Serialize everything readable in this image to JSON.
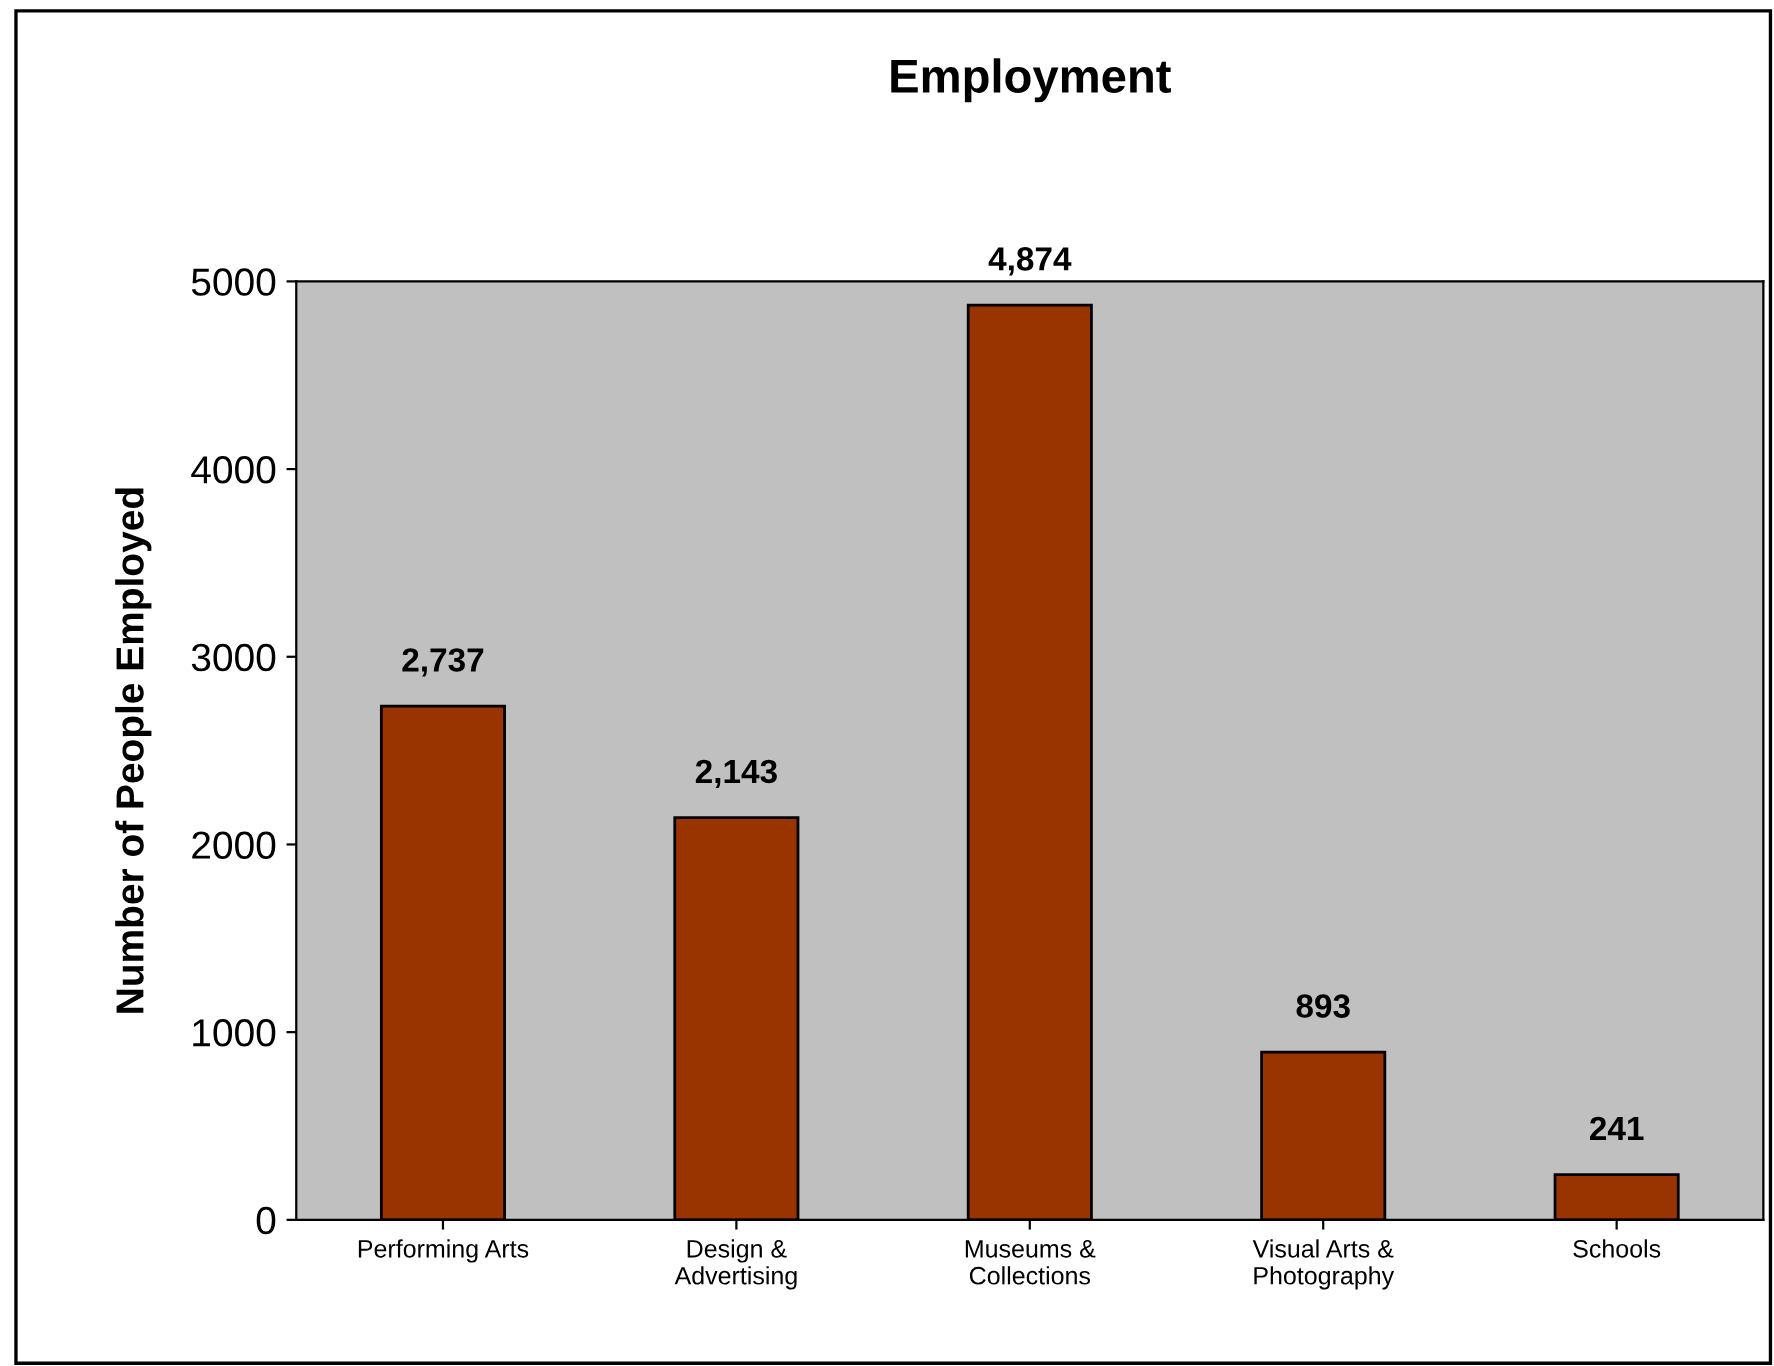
{
  "chart_data": {
    "type": "bar",
    "title": "Employment",
    "ylabel": "Number of People Employed",
    "categories": [
      "Performing Arts",
      "Design &\nAdvertising",
      "Museums &\nCollections",
      "Visual Arts &\nPhotography",
      "Schools"
    ],
    "values": [
      2737,
      2143,
      4874,
      893,
      241
    ],
    "value_labels": [
      "2,737",
      "2,143",
      "4,874",
      "893",
      "241"
    ],
    "color": "#993300",
    "ylim": [
      0,
      5000
    ],
    "yticks": [
      0,
      1000,
      2000,
      3000,
      4000,
      5000
    ],
    "grid": false,
    "legend": false
  }
}
